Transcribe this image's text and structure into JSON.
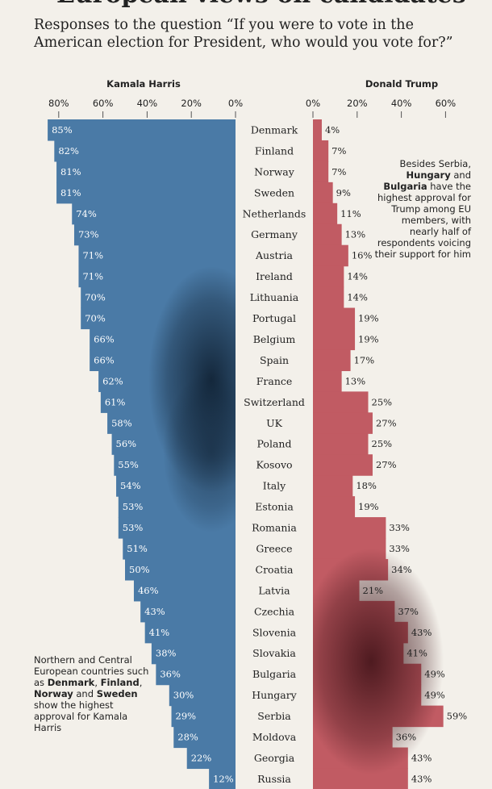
{
  "headline_fragment": "European views on candidates",
  "question": "Responses to the question “If you were to vote in the American election for President, who would you vote for?”",
  "note_trump": {
    "parts": [
      {
        "text": "Besides Serbia, ",
        "bold": false
      },
      {
        "text": "Hungary",
        "bold": true
      },
      {
        "text": " and ",
        "bold": false
      },
      {
        "text": "Bulgaria",
        "bold": true
      },
      {
        "text": " have the highest approval for Trump among EU members, with nearly half of respondents voicing their support for him",
        "bold": false
      }
    ]
  },
  "note_harris": {
    "parts": [
      {
        "text": "Northern and Central European countries such as ",
        "bold": false
      },
      {
        "text": "Denmark",
        "bold": true
      },
      {
        "text": ", ",
        "bold": false
      },
      {
        "text": "Finland",
        "bold": true
      },
      {
        "text": ", ",
        "bold": false
      },
      {
        "text": "Norway",
        "bold": true
      },
      {
        "text": " and ",
        "bold": false
      },
      {
        "text": "Sweden",
        "bold": true
      },
      {
        "text": " show the highest approval for Kamala Harris",
        "bold": false
      }
    ]
  },
  "colors": {
    "harris": "#4a7aa6",
    "trump": "#c15b63",
    "background": "#f3f0ea"
  },
  "chart_data": {
    "type": "bar",
    "orientation": "horizontal-diverging",
    "categories": [
      "Denmark",
      "Finland",
      "Norway",
      "Sweden",
      "Netherlands",
      "Germany",
      "Austria",
      "Ireland",
      "Lithuania",
      "Portugal",
      "Belgium",
      "Spain",
      "France",
      "Switzerland",
      "UK",
      "Poland",
      "Kosovo",
      "Italy",
      "Estonia",
      "Romania",
      "Greece",
      "Croatia",
      "Latvia",
      "Czechia",
      "Slovenia",
      "Slovakia",
      "Bulgaria",
      "Hungary",
      "Serbia",
      "Moldova",
      "Georgia",
      "Russia"
    ],
    "series": [
      {
        "name": "Kamala Harris",
        "values": [
          85,
          82,
          81,
          81,
          74,
          73,
          71,
          71,
          70,
          70,
          66,
          66,
          62,
          61,
          58,
          56,
          55,
          54,
          53,
          53,
          51,
          50,
          46,
          43,
          41,
          38,
          36,
          30,
          29,
          28,
          22,
          12
        ]
      },
      {
        "name": "Donald Trump",
        "values": [
          4,
          7,
          7,
          9,
          11,
          13,
          16,
          14,
          14,
          19,
          19,
          17,
          13,
          25,
          27,
          25,
          27,
          18,
          19,
          33,
          33,
          34,
          21,
          37,
          43,
          41,
          49,
          49,
          59,
          36,
          43,
          43
        ]
      }
    ],
    "left_ticks": [
      "80%",
      "60%",
      "40%",
      "20%",
      "0%"
    ],
    "right_ticks": [
      "0%",
      "20%",
      "40%",
      "60%"
    ],
    "xlim": [
      0,
      100
    ],
    "value_suffix": "%"
  }
}
